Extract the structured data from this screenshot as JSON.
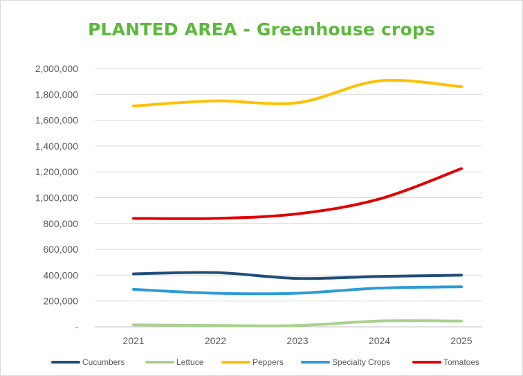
{
  "chart_data": {
    "type": "line",
    "title": "PLANTED AREA - Greenhouse crops",
    "xlabel": "",
    "ylabel": "",
    "categories": [
      "2021",
      "2022",
      "2023",
      "2024",
      "2025"
    ],
    "ylim": [
      0,
      2000000
    ],
    "yticks": [
      0,
      200000,
      400000,
      600000,
      800000,
      1000000,
      1200000,
      1400000,
      1600000,
      1800000,
      2000000
    ],
    "ytick_labels": [
      "-",
      "200,000",
      "400,000",
      "600,000",
      "800,000",
      "1,000,000",
      "1,200,000",
      "1,400,000",
      "1,600,000",
      "1,800,000",
      "2,000,000"
    ],
    "grid": "horizontal",
    "legend_position": "bottom",
    "series": [
      {
        "name": "Cucumbers",
        "color": "#1f4e79",
        "values": [
          410000,
          420000,
          375000,
          390000,
          400000
        ]
      },
      {
        "name": "Lettuce",
        "color": "#a9d18e",
        "values": [
          15000,
          10000,
          10000,
          45000,
          45000
        ]
      },
      {
        "name": "Peppers",
        "color": "#ffc000",
        "values": [
          1710000,
          1750000,
          1735000,
          1905000,
          1860000
        ]
      },
      {
        "name": "Specialty Crops",
        "color": "#2e9bd6",
        "values": [
          290000,
          260000,
          260000,
          300000,
          310000
        ]
      },
      {
        "name": "Tomatoes",
        "color": "#e00000",
        "values": [
          840000,
          840000,
          875000,
          990000,
          1225000
        ]
      }
    ]
  }
}
